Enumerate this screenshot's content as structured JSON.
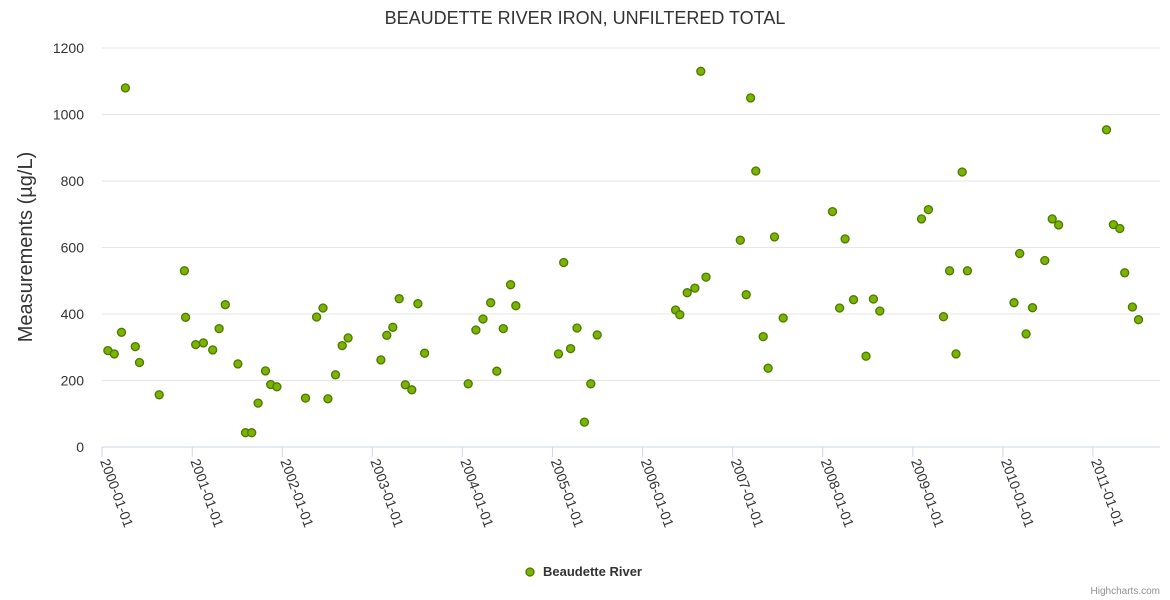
{
  "chart_data": {
    "type": "scatter",
    "title": "BEAUDETTE RIVER IRON, UNFILTERED TOTAL",
    "ylabel": "Measurements (µg/L)",
    "xlabel": "",
    "ylim": [
      0,
      1200
    ],
    "yticks": [
      0,
      200,
      400,
      600,
      800,
      1000,
      1200
    ],
    "xlim": [
      "2000-01-01",
      "2011-09-30"
    ],
    "xticks": [
      "2000-01-01",
      "2001-01-01",
      "2002-01-01",
      "2003-01-01",
      "2004-01-01",
      "2005-01-01",
      "2006-01-01",
      "2007-01-01",
      "2008-01-01",
      "2009-01-01",
      "2010-01-01",
      "2011-01-01"
    ],
    "grid": true,
    "legend_position": "bottom-center",
    "colors": {
      "marker_fill": "#7cb300",
      "marker_stroke": "#4a7a00"
    },
    "series": [
      {
        "name": "Beaudette River",
        "points": [
          {
            "x": "2000-01-25",
            "y": 290
          },
          {
            "x": "2000-02-20",
            "y": 280
          },
          {
            "x": "2000-03-20",
            "y": 345
          },
          {
            "x": "2000-04-05",
            "y": 1080
          },
          {
            "x": "2000-05-15",
            "y": 302
          },
          {
            "x": "2000-06-01",
            "y": 254
          },
          {
            "x": "2000-08-20",
            "y": 157
          },
          {
            "x": "2000-11-30",
            "y": 530
          },
          {
            "x": "2000-12-05",
            "y": 390
          },
          {
            "x": "2001-01-15",
            "y": 308
          },
          {
            "x": "2001-02-15",
            "y": 313
          },
          {
            "x": "2001-03-25",
            "y": 292
          },
          {
            "x": "2001-04-20",
            "y": 356
          },
          {
            "x": "2001-05-15",
            "y": 428
          },
          {
            "x": "2001-07-05",
            "y": 250
          },
          {
            "x": "2001-08-05",
            "y": 43
          },
          {
            "x": "2001-08-30",
            "y": 43
          },
          {
            "x": "2001-09-25",
            "y": 132
          },
          {
            "x": "2001-10-25",
            "y": 229
          },
          {
            "x": "2001-11-15",
            "y": 188
          },
          {
            "x": "2001-12-10",
            "y": 181
          },
          {
            "x": "2002-04-05",
            "y": 147
          },
          {
            "x": "2002-05-20",
            "y": 391
          },
          {
            "x": "2002-06-15",
            "y": 418
          },
          {
            "x": "2002-07-05",
            "y": 145
          },
          {
            "x": "2002-08-05",
            "y": 217
          },
          {
            "x": "2002-09-01",
            "y": 305
          },
          {
            "x": "2002-09-25",
            "y": 328
          },
          {
            "x": "2003-02-05",
            "y": 262
          },
          {
            "x": "2003-03-01",
            "y": 336
          },
          {
            "x": "2003-03-25",
            "y": 360
          },
          {
            "x": "2003-04-20",
            "y": 446
          },
          {
            "x": "2003-05-15",
            "y": 187
          },
          {
            "x": "2003-06-10",
            "y": 172
          },
          {
            "x": "2003-07-05",
            "y": 431
          },
          {
            "x": "2003-08-01",
            "y": 282
          },
          {
            "x": "2004-01-25",
            "y": 190
          },
          {
            "x": "2004-02-25",
            "y": 352
          },
          {
            "x": "2004-03-25",
            "y": 385
          },
          {
            "x": "2004-04-25",
            "y": 434
          },
          {
            "x": "2004-05-20",
            "y": 228
          },
          {
            "x": "2004-06-15",
            "y": 356
          },
          {
            "x": "2004-07-15",
            "y": 488
          },
          {
            "x": "2004-08-05",
            "y": 425
          },
          {
            "x": "2005-01-25",
            "y": 280
          },
          {
            "x": "2005-02-15",
            "y": 555
          },
          {
            "x": "2005-03-15",
            "y": 296
          },
          {
            "x": "2005-04-10",
            "y": 358
          },
          {
            "x": "2005-05-10",
            "y": 75
          },
          {
            "x": "2005-06-05",
            "y": 190
          },
          {
            "x": "2005-07-01",
            "y": 337
          },
          {
            "x": "2006-05-15",
            "y": 412
          },
          {
            "x": "2006-06-01",
            "y": 398
          },
          {
            "x": "2006-07-01",
            "y": 464
          },
          {
            "x": "2006-08-01",
            "y": 478
          },
          {
            "x": "2006-08-25",
            "y": 1130
          },
          {
            "x": "2006-09-15",
            "y": 511
          },
          {
            "x": "2007-02-01",
            "y": 622
          },
          {
            "x": "2007-02-25",
            "y": 458
          },
          {
            "x": "2007-03-15",
            "y": 1050
          },
          {
            "x": "2007-04-05",
            "y": 830
          },
          {
            "x": "2007-05-05",
            "y": 332
          },
          {
            "x": "2007-05-25",
            "y": 237
          },
          {
            "x": "2007-06-20",
            "y": 632
          },
          {
            "x": "2007-07-25",
            "y": 388
          },
          {
            "x": "2008-02-10",
            "y": 708
          },
          {
            "x": "2008-03-10",
            "y": 418
          },
          {
            "x": "2008-04-01",
            "y": 626
          },
          {
            "x": "2008-05-05",
            "y": 443
          },
          {
            "x": "2008-06-25",
            "y": 273
          },
          {
            "x": "2008-07-25",
            "y": 445
          },
          {
            "x": "2008-08-20",
            "y": 409
          },
          {
            "x": "2009-02-05",
            "y": 686
          },
          {
            "x": "2009-03-05",
            "y": 714
          },
          {
            "x": "2009-05-05",
            "y": 392
          },
          {
            "x": "2009-05-30",
            "y": 530
          },
          {
            "x": "2009-06-25",
            "y": 280
          },
          {
            "x": "2009-07-20",
            "y": 827
          },
          {
            "x": "2009-08-10",
            "y": 530
          },
          {
            "x": "2010-02-15",
            "y": 434
          },
          {
            "x": "2010-03-10",
            "y": 582
          },
          {
            "x": "2010-04-05",
            "y": 340
          },
          {
            "x": "2010-05-01",
            "y": 419
          },
          {
            "x": "2010-06-20",
            "y": 561
          },
          {
            "x": "2010-07-20",
            "y": 686
          },
          {
            "x": "2010-08-15",
            "y": 668
          },
          {
            "x": "2011-02-25",
            "y": 954
          },
          {
            "x": "2011-03-25",
            "y": 669
          },
          {
            "x": "2011-04-20",
            "y": 657
          },
          {
            "x": "2011-05-10",
            "y": 524
          },
          {
            "x": "2011-06-10",
            "y": 421
          },
          {
            "x": "2011-07-05",
            "y": 383
          }
        ]
      }
    ]
  },
  "credits": "Highcharts.com"
}
